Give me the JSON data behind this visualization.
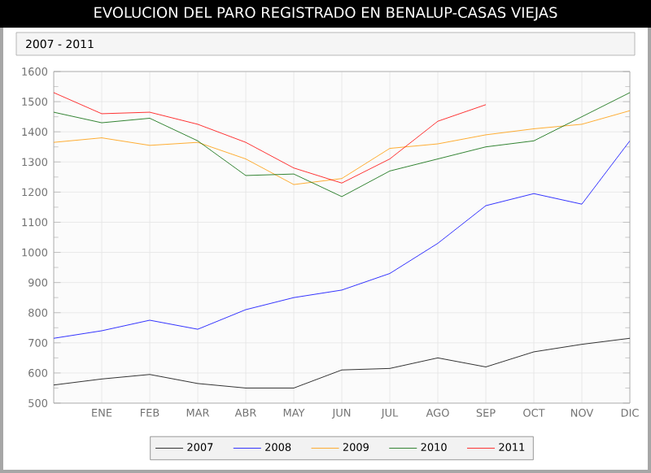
{
  "chart_data": {
    "type": "line",
    "title": "EVOLUCION DEL PARO REGISTRADO EN BENALUP-CASAS VIEJAS",
    "subtitle": "2007 - 2011",
    "categories": [
      null,
      "ENE",
      "FEB",
      "MAR",
      "ABR",
      "MAY",
      "JUN",
      "JUL",
      "AGO",
      "SEP",
      "OCT",
      "NOV",
      "DIC"
    ],
    "series": [
      {
        "name": "2007",
        "color": "#000000",
        "values": [
          560,
          580,
          595,
          565,
          550,
          550,
          610,
          615,
          650,
          620,
          670,
          695,
          715
        ]
      },
      {
        "name": "2008",
        "color": "#0000ff",
        "values": [
          715,
          740,
          775,
          745,
          810,
          850,
          875,
          930,
          1030,
          1155,
          1195,
          1160,
          1370
        ]
      },
      {
        "name": "2009",
        "color": "#ff9900",
        "values": [
          1365,
          1380,
          1355,
          1365,
          1310,
          1225,
          1245,
          1345,
          1360,
          1390,
          1410,
          1425,
          1470
        ]
      },
      {
        "name": "2010",
        "color": "#006600",
        "values": [
          1465,
          1430,
          1445,
          1370,
          1255,
          1260,
          1185,
          1270,
          1310,
          1350,
          1370,
          1450,
          1530
        ]
      },
      {
        "name": "2011",
        "color": "#ff0000",
        "values": [
          1530,
          1460,
          1465,
          1425,
          1365,
          1280,
          1230,
          1310,
          1435,
          1490,
          null,
          null,
          null
        ]
      }
    ],
    "ylim": [
      500,
      1600
    ],
    "yticks": [
      500,
      600,
      700,
      800,
      900,
      1000,
      1100,
      1200,
      1300,
      1400,
      1500,
      1600
    ],
    "grid": true,
    "legend": "bottom",
    "line_style": "solid"
  }
}
